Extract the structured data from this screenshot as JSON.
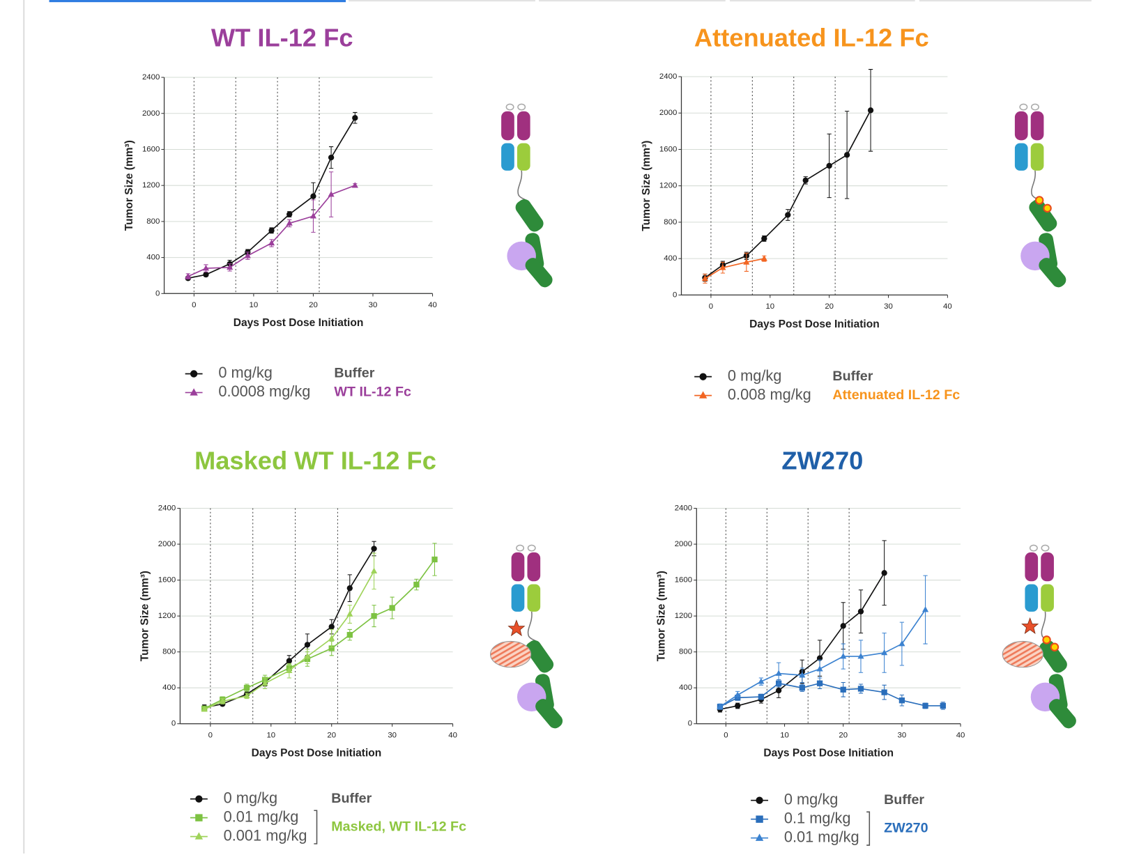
{
  "chart_data": [
    {
      "type": "line",
      "title": "WT IL-12 Fc",
      "title_color": "#9b3f9b",
      "xlabel": "Days Post Dose Initiation",
      "ylabel": "Tumor Size (mm³)",
      "xlim": [
        -5,
        40
      ],
      "ylim": [
        0,
        2400
      ],
      "xticks": [
        0,
        10,
        20,
        30,
        40
      ],
      "yticks": [
        0,
        400,
        800,
        1200,
        1600,
        2000,
        2400
      ],
      "grid": true,
      "vlines": [
        0,
        7,
        14,
        21
      ],
      "series": [
        {
          "name": "0 mg/kg",
          "color": "#111111",
          "marker": "circle",
          "x": [
            -1,
            2,
            6,
            9,
            13,
            16,
            20,
            23,
            27
          ],
          "values": [
            170,
            210,
            330,
            460,
            700,
            880,
            1080,
            1510,
            1950
          ],
          "errors": [
            20,
            20,
            40,
            30,
            30,
            30,
            150,
            120,
            60
          ]
        },
        {
          "name": "0.0008 mg/kg",
          "color": "#9b3f9b",
          "marker": "triangle",
          "x": [
            -1,
            2,
            6,
            9,
            13,
            16,
            20,
            23,
            27
          ],
          "values": [
            190,
            280,
            290,
            420,
            560,
            780,
            860,
            1100,
            1200
          ],
          "errors": [
            30,
            40,
            40,
            40,
            40,
            40,
            180,
            250,
            20
          ]
        }
      ],
      "legend_groups": [
        {
          "label": "Buffer",
          "color": "#555555"
        },
        {
          "label": "WT IL-12 Fc",
          "color": "#9b3f9b"
        }
      ]
    },
    {
      "type": "line",
      "title": "Attenuated IL-12 Fc",
      "title_color": "#f7941d",
      "xlabel": "Days Post Dose Initiation",
      "ylabel": "Tumor Size (mm³)",
      "xlim": [
        -5,
        40
      ],
      "ylim": [
        0,
        2400
      ],
      "xticks": [
        0,
        10,
        20,
        30,
        40
      ],
      "yticks": [
        0,
        400,
        800,
        1200,
        1600,
        2000,
        2400
      ],
      "grid": true,
      "vlines": [
        0,
        7,
        14,
        21
      ],
      "series": [
        {
          "name": "0 mg/kg",
          "color": "#111111",
          "marker": "circle",
          "x": [
            -1,
            2,
            6,
            9,
            13,
            16,
            20,
            23,
            27
          ],
          "values": [
            190,
            330,
            430,
            620,
            880,
            1260,
            1420,
            1540,
            2030
          ],
          "errors": [
            40,
            40,
            40,
            30,
            60,
            40,
            350,
            480,
            450
          ]
        },
        {
          "name": "0.008 mg/kg",
          "color": "#f26522",
          "marker": "triangle",
          "x": [
            -1,
            2,
            6,
            9
          ],
          "values": [
            180,
            300,
            360,
            400
          ],
          "errors": [
            50,
            60,
            100,
            30
          ]
        }
      ],
      "legend_groups": [
        {
          "label": "Buffer",
          "color": "#555555"
        },
        {
          "label": "Attenuated IL-12 Fc",
          "color": "#f7941d"
        }
      ]
    },
    {
      "type": "line",
      "title": "Masked WT IL-12 Fc",
      "title_color": "#8dc63f",
      "xlabel": "Days Post Dose Initiation",
      "ylabel": "Tumor Size (mm³)",
      "xlim": [
        -5,
        40
      ],
      "ylim": [
        0,
        2400
      ],
      "xticks": [
        0,
        10,
        20,
        30,
        40
      ],
      "yticks": [
        0,
        400,
        800,
        1200,
        1600,
        2000,
        2400
      ],
      "grid": true,
      "vlines": [
        0,
        7,
        14,
        21
      ],
      "series": [
        {
          "name": "0 mg/kg",
          "color": "#111111",
          "marker": "circle",
          "x": [
            -1,
            2,
            6,
            9,
            13,
            16,
            20,
            23,
            27
          ],
          "values": [
            180,
            220,
            330,
            460,
            700,
            880,
            1080,
            1510,
            1950
          ],
          "errors": [
            30,
            20,
            30,
            40,
            60,
            120,
            80,
            150,
            80
          ]
        },
        {
          "name": "0.01 mg/kg",
          "color": "#7dc242",
          "marker": "square",
          "x": [
            -1,
            2,
            6,
            9,
            13,
            16,
            20,
            23,
            27,
            30,
            34,
            37
          ],
          "values": [
            170,
            270,
            400,
            490,
            620,
            720,
            840,
            990,
            1200,
            1290,
            1550,
            1830
          ],
          "errors": [
            20,
            30,
            40,
            50,
            40,
            80,
            80,
            60,
            120,
            120,
            60,
            180
          ]
        },
        {
          "name": "0.001 mg/kg",
          "color": "#9fd35a",
          "marker": "triangle",
          "x": [
            -1,
            2,
            6,
            9,
            13,
            16,
            20,
            23,
            27
          ],
          "values": [
            160,
            250,
            310,
            450,
            590,
            750,
            950,
            1220,
            1700
          ],
          "errors": [
            20,
            30,
            30,
            60,
            80,
            80,
            100,
            100,
            200
          ]
        }
      ],
      "legend_groups": [
        {
          "label": "Buffer",
          "color": "#555555"
        },
        {
          "label": "Masked, WT IL-12 Fc",
          "color": "#8dc63f"
        }
      ]
    },
    {
      "type": "line",
      "title": "ZW270",
      "title_color": "#1f5fa8",
      "xlabel": "Days Post Dose Initiation",
      "ylabel": "Tumor Size (mm³)",
      "xlim": [
        -5,
        40
      ],
      "ylim": [
        0,
        2400
      ],
      "xticks": [
        0,
        10,
        20,
        30,
        40
      ],
      "yticks": [
        0,
        400,
        800,
        1200,
        1600,
        2000,
        2400
      ],
      "grid": true,
      "vlines": [
        0,
        7,
        14,
        21
      ],
      "series": [
        {
          "name": "0 mg/kg",
          "color": "#111111",
          "marker": "circle",
          "x": [
            -1,
            2,
            6,
            9,
            13,
            16,
            20,
            23,
            27
          ],
          "values": [
            160,
            200,
            270,
            370,
            580,
            730,
            1090,
            1250,
            1680
          ],
          "errors": [
            30,
            30,
            40,
            80,
            130,
            200,
            260,
            240,
            360
          ]
        },
        {
          "name": "0.1 mg/kg",
          "color": "#2a6ebb",
          "marker": "square",
          "x": [
            -1,
            2,
            6,
            9,
            13,
            16,
            20,
            23,
            27,
            30,
            34,
            37
          ],
          "values": [
            190,
            290,
            300,
            450,
            400,
            450,
            380,
            390,
            350,
            260,
            200,
            200
          ],
          "errors": [
            30,
            30,
            30,
            40,
            40,
            60,
            80,
            50,
            80,
            60,
            30,
            40
          ]
        },
        {
          "name": "0.01 mg/kg",
          "color": "#3b82d0",
          "marker": "triangle",
          "x": [
            -1,
            2,
            6,
            9,
            13,
            16,
            20,
            23,
            27,
            30,
            34
          ],
          "values": [
            190,
            320,
            470,
            560,
            540,
            610,
            750,
            750,
            790,
            890,
            1270
          ],
          "errors": [
            30,
            40,
            40,
            120,
            80,
            100,
            140,
            180,
            220,
            240,
            380
          ]
        }
      ],
      "legend_groups": [
        {
          "label": "Buffer",
          "color": "#555555"
        },
        {
          "label": "ZW270",
          "color": "#2a6ebb"
        }
      ]
    }
  ]
}
